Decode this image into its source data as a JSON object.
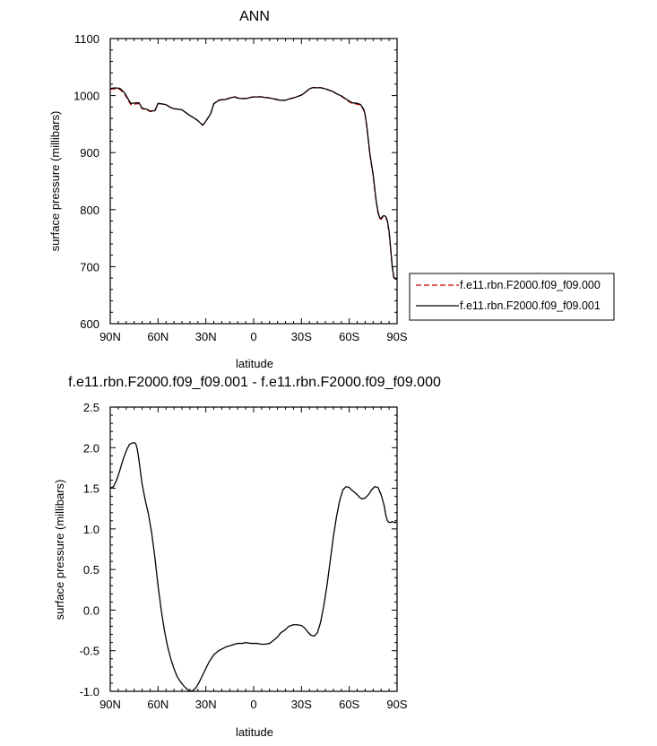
{
  "chart_data": [
    {
      "type": "line",
      "title": "ANN",
      "xlabel": "latitude",
      "ylabel": "surface pressure (millibars)",
      "xlim": [
        90,
        -90
      ],
      "ylim": [
        600,
        1100
      ],
      "xticks": [
        90,
        60,
        30,
        0,
        -30,
        -60,
        -90
      ],
      "xtick_labels": [
        "90N",
        "60N",
        "30N",
        "0",
        "30S",
        "60S",
        "90S"
      ],
      "yticks": [
        600,
        700,
        800,
        900,
        1000,
        1100
      ],
      "ytick_labels": [
        "600",
        "700",
        "800",
        "900",
        "1000",
        "1100"
      ],
      "grid": false,
      "legend_position": "right",
      "series": [
        {
          "name": "f.e11.rbn.F2000.f09_f09.000",
          "color": "#cc0000",
          "dash": "dashed",
          "x": [
            90,
            87,
            84,
            81,
            79,
            77,
            75,
            72,
            70,
            67,
            65,
            62,
            60,
            57,
            55,
            52,
            50,
            47,
            45,
            42,
            40,
            37,
            35,
            32,
            30,
            27,
            25,
            22,
            20,
            17,
            15,
            12,
            10,
            7,
            5,
            2,
            0,
            -2,
            -5,
            -7,
            -10,
            -12,
            -15,
            -17,
            -20,
            -22,
            -25,
            -27,
            -30,
            -32,
            -35,
            -37,
            -40,
            -42,
            -45,
            -47,
            -50,
            -52,
            -55,
            -57,
            -60,
            -62,
            -65,
            -67,
            -69,
            -70,
            -71,
            -72,
            -73,
            -75,
            -76,
            -77,
            -78,
            -79,
            -80,
            -81,
            -82,
            -83,
            -84,
            -85,
            -86,
            -87,
            -88,
            -89,
            -90
          ],
          "y": [
            1011,
            1012,
            1011,
            1003,
            993,
            984,
            985,
            986,
            977,
            975,
            972,
            973,
            986,
            985,
            984,
            979,
            977,
            976,
            975,
            969,
            965,
            960,
            956,
            948,
            955,
            968,
            986,
            992,
            993,
            994,
            996,
            998,
            996,
            995,
            995,
            997,
            998,
            998,
            998,
            997,
            996,
            995,
            993,
            992,
            992,
            994,
            996,
            998,
            1001,
            1005,
            1012,
            1014,
            1014,
            1014,
            1012,
            1010,
            1007,
            1003,
            999,
            995,
            989,
            986,
            985,
            983,
            975,
            965,
            945,
            920,
            895,
            860,
            835,
            812,
            795,
            785,
            783,
            787,
            788,
            786,
            778,
            760,
            730,
            698,
            680,
            677,
            678
          ]
        },
        {
          "name": "f.e11.rbn.F2000.f09_f09.001",
          "color": "#000000",
          "dash": "solid",
          "x": [
            90,
            87,
            84,
            81,
            79,
            77,
            75,
            72,
            70,
            67,
            65,
            62,
            60,
            57,
            55,
            52,
            50,
            47,
            45,
            42,
            40,
            37,
            35,
            32,
            30,
            27,
            25,
            22,
            20,
            17,
            15,
            12,
            10,
            7,
            5,
            2,
            0,
            -2,
            -5,
            -7,
            -10,
            -12,
            -15,
            -17,
            -20,
            -22,
            -25,
            -27,
            -30,
            -32,
            -35,
            -37,
            -40,
            -42,
            -45,
            -47,
            -50,
            -52,
            -55,
            -57,
            -60,
            -62,
            -65,
            -67,
            -69,
            -70,
            -71,
            -72,
            -73,
            -75,
            -76,
            -77,
            -78,
            -79,
            -80,
            -81,
            -82,
            -83,
            -84,
            -85,
            -86,
            -87,
            -88,
            -89,
            -90
          ],
          "y": [
            1012.5,
            1013.5,
            1012.7,
            1005,
            995,
            986,
            987,
            987.5,
            978,
            976,
            973,
            973.5,
            986.3,
            985.2,
            984,
            979,
            977,
            976,
            975,
            969,
            965,
            960,
            956,
            948,
            955,
            968,
            985.5,
            991.5,
            992.5,
            993.6,
            995.6,
            997.6,
            995.6,
            994.6,
            994.6,
            996.6,
            997.6,
            997.6,
            997.6,
            996.6,
            995.6,
            994.6,
            992.6,
            991.7,
            991.8,
            993.9,
            995.9,
            997.9,
            1000.8,
            1004.8,
            1011.8,
            1013.8,
            1013.7,
            1013.7,
            1011.7,
            1009.8,
            1006.9,
            1003.2,
            999.5,
            995.8,
            990.2,
            987.3,
            986.5,
            984.5,
            976.4,
            966.4,
            946.4,
            921.4,
            896.3,
            861.4,
            836.4,
            813.4,
            796.4,
            786.5,
            784.5,
            788.5,
            789.5,
            787.5,
            779.5,
            761.2,
            731.3,
            699.2,
            681.1,
            678.1,
            679.1
          ]
        }
      ]
    },
    {
      "type": "line",
      "title": "f.e11.rbn.F2000.f09_f09.001 - f.e11.rbn.F2000.f09_f09.000",
      "xlabel": "latitude",
      "ylabel": "surface pressure (millibars)",
      "xlim": [
        90,
        -90
      ],
      "ylim": [
        -1.0,
        2.5
      ],
      "xticks": [
        90,
        60,
        30,
        0,
        -30,
        -60,
        -90
      ],
      "xtick_labels": [
        "90N",
        "60N",
        "30N",
        "0",
        "30S",
        "60S",
        "90S"
      ],
      "yticks": [
        -1.0,
        -0.5,
        0.0,
        0.5,
        1.0,
        1.5,
        2.0,
        2.5
      ],
      "ytick_labels": [
        "-1.0",
        "-0.5",
        "0.0",
        "0.5",
        "1.0",
        "1.5",
        "2.0",
        "2.5"
      ],
      "grid": false,
      "series": [
        {
          "color": "#000000",
          "dash": "solid",
          "x": [
            90,
            88,
            86,
            84,
            82,
            80,
            78,
            76,
            75,
            74,
            73,
            72,
            71,
            70,
            68,
            66,
            64,
            62,
            60,
            58,
            56,
            54,
            52,
            50,
            48,
            46,
            44,
            42,
            40,
            38,
            36,
            34,
            32,
            30,
            28,
            25,
            22,
            20,
            17,
            15,
            12,
            10,
            7,
            5,
            2,
            0,
            -2,
            -5,
            -7,
            -10,
            -12,
            -15,
            -17,
            -20,
            -22,
            -25,
            -27,
            -30,
            -32,
            -34,
            -36,
            -38,
            -40,
            -42,
            -44,
            -46,
            -48,
            -50,
            -52,
            -54,
            -56,
            -58,
            -60,
            -62,
            -64,
            -65,
            -66,
            -67,
            -68,
            -70,
            -72,
            -74,
            -76,
            -78,
            -80,
            -82,
            -83,
            -84,
            -85,
            -86,
            -87,
            -88,
            -89,
            -90
          ],
          "y": [
            1.5,
            1.52,
            1.6,
            1.72,
            1.85,
            1.96,
            2.04,
            2.06,
            2.06,
            2.05,
            1.98,
            1.85,
            1.7,
            1.55,
            1.35,
            1.18,
            0.95,
            0.65,
            0.3,
            0.0,
            -0.25,
            -0.45,
            -0.6,
            -0.72,
            -0.82,
            -0.88,
            -0.93,
            -0.97,
            -1.0,
            -0.99,
            -0.95,
            -0.88,
            -0.8,
            -0.72,
            -0.64,
            -0.55,
            -0.5,
            -0.48,
            -0.45,
            -0.44,
            -0.42,
            -0.41,
            -0.41,
            -0.4,
            -0.41,
            -0.41,
            -0.41,
            -0.42,
            -0.42,
            -0.41,
            -0.38,
            -0.33,
            -0.28,
            -0.24,
            -0.2,
            -0.18,
            -0.18,
            -0.19,
            -0.22,
            -0.27,
            -0.31,
            -0.32,
            -0.28,
            -0.15,
            0.05,
            0.3,
            0.6,
            0.9,
            1.15,
            1.35,
            1.48,
            1.52,
            1.51,
            1.47,
            1.44,
            1.42,
            1.4,
            1.38,
            1.37,
            1.38,
            1.42,
            1.48,
            1.52,
            1.51,
            1.42,
            1.28,
            1.16,
            1.1,
            1.08,
            1.08,
            1.09,
            1.08,
            1.08,
            1.08
          ]
        }
      ]
    }
  ]
}
